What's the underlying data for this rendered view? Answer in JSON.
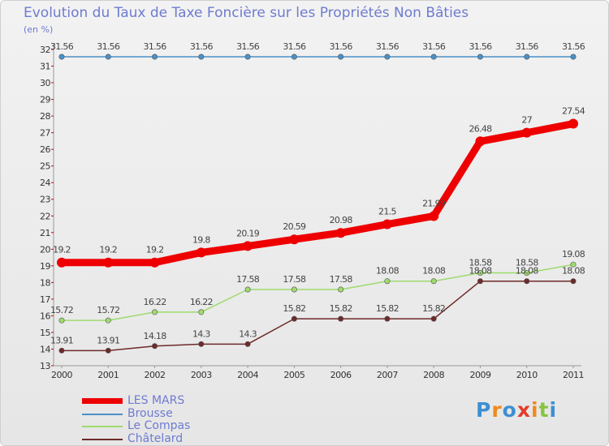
{
  "chart_data": {
    "type": "line",
    "title": "Evolution du Taux de Taxe Foncière sur les Propriétés Non Bâties",
    "ylabel": "(en %)",
    "xlabel": "",
    "ylim": [
      13,
      32
    ],
    "y_ticks": [
      13,
      14,
      15,
      16,
      17,
      18,
      19,
      20,
      21,
      22,
      23,
      24,
      25,
      26,
      27,
      28,
      29,
      30,
      31,
      32
    ],
    "categories": [
      "2000",
      "2001",
      "2002",
      "2003",
      "2004",
      "2005",
      "2006",
      "2007",
      "2008",
      "2009",
      "2010",
      "2011"
    ],
    "grid": false,
    "series": [
      {
        "name": "LES MARS",
        "color": "#ee0000",
        "values": [
          19.2,
          19.2,
          19.2,
          19.8,
          20.19,
          20.59,
          20.98,
          21.5,
          21.99,
          26.48,
          27,
          27.54
        ],
        "labels": [
          "19.2",
          "19.2",
          "19.2",
          "19.8",
          "20.19",
          "20.59",
          "20.98",
          "21.5",
          "21.99",
          "26.48",
          "27",
          "27.54"
        ]
      },
      {
        "name": "Brousse",
        "color": "#4a90c8",
        "values": [
          31.56,
          31.56,
          31.56,
          31.56,
          31.56,
          31.56,
          31.56,
          31.56,
          31.56,
          31.56,
          31.56,
          31.56
        ],
        "labels": [
          "31.56",
          "31.56",
          "31.56",
          "31.56",
          "31.56",
          "31.56",
          "31.56",
          "31.56",
          "31.56",
          "31.56",
          "31.56",
          "31.56"
        ]
      },
      {
        "name": "Le Compas",
        "color": "#9edb6e",
        "values": [
          15.72,
          15.72,
          16.22,
          16.22,
          17.58,
          17.58,
          17.58,
          18.08,
          18.08,
          18.58,
          18.58,
          19.08
        ],
        "labels": [
          "15.72",
          "15.72",
          "16.22",
          "16.22",
          "17.58",
          "17.58",
          "17.58",
          "18.08",
          "18.08",
          "18.58",
          "18.58",
          "19.08"
        ]
      },
      {
        "name": "Châtelard",
        "color": "#6e2a2a",
        "values": [
          13.91,
          13.91,
          14.18,
          14.3,
          14.3,
          15.82,
          15.82,
          15.82,
          15.82,
          18.08,
          18.08,
          18.08
        ],
        "labels": [
          "13.91",
          "13.91",
          "14.18",
          "14.3",
          "14.3",
          "15.82",
          "15.82",
          "15.82",
          "15.82",
          "18.08",
          "18.08",
          "18.08"
        ]
      }
    ]
  },
  "legend": [
    {
      "label": "LES MARS",
      "color": "#ee0000"
    },
    {
      "label": "Brousse",
      "color": "#4a90c8"
    },
    {
      "label": "Le Compas",
      "color": "#9edb6e"
    },
    {
      "label": "Châtelard",
      "color": "#6e2a2a"
    }
  ],
  "logo": {
    "text": "Proxiti",
    "colors": [
      "#3d8fd1",
      "#f08a1c",
      "#3d8fd1",
      "#e33c2a",
      "#f08a1c",
      "#88c441",
      "#3d8fd1"
    ]
  }
}
